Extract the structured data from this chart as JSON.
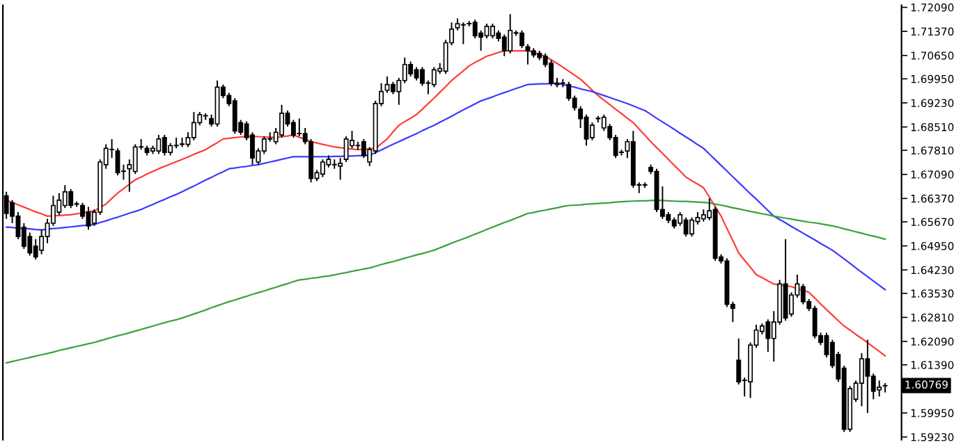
{
  "chart_data": {
    "type": "candlestick",
    "categories": [
      null,
      null,
      null,
      null,
      null,
      null,
      null,
      null,
      null,
      null,
      null,
      null,
      null,
      null,
      null,
      null,
      null,
      null,
      null,
      null,
      null,
      null,
      null,
      null,
      null,
      null,
      null,
      null,
      null,
      null,
      null,
      null,
      null,
      null,
      null,
      null,
      null,
      null,
      null,
      null,
      null,
      null,
      null,
      null,
      null,
      null,
      null,
      null,
      null,
      null,
      null,
      null,
      null,
      null,
      null,
      null,
      null,
      null,
      null,
      null,
      null,
      null,
      null,
      null,
      null,
      null,
      null,
      null,
      null,
      null,
      null,
      null,
      null,
      null,
      null,
      null,
      null,
      null,
      null,
      null,
      null,
      null,
      null,
      null,
      null,
      null,
      null,
      null,
      null,
      null,
      null,
      null,
      null,
      null,
      null,
      null,
      null,
      null,
      null,
      null,
      null,
      null,
      null,
      null,
      null,
      null,
      null,
      null,
      null,
      null,
      null,
      null,
      null,
      null,
      null,
      null,
      null,
      null,
      null,
      null,
      null,
      null,
      null,
      null,
      null,
      null,
      null,
      null,
      null,
      null,
      null,
      null,
      null,
      null,
      null,
      null,
      null,
      null,
      null,
      null,
      null,
      null,
      null,
      null,
      null,
      null,
      null,
      null,
      null,
      null,
      null
    ],
    "ohlc": [
      [
        1.6645,
        1.6657,
        1.6576,
        1.6592
      ],
      [
        1.6624,
        1.6632,
        1.6563,
        1.6584
      ],
      [
        1.6584,
        1.6596,
        1.6515,
        1.6523
      ],
      [
        1.6551,
        1.6563,
        1.6486,
        1.6494
      ],
      [
        1.6523,
        1.6535,
        1.6466,
        1.6474
      ],
      [
        1.6494,
        1.6515,
        1.6454,
        1.6462
      ],
      [
        1.6482,
        1.6543,
        1.647,
        1.6523
      ],
      [
        1.6523,
        1.6576,
        1.6503,
        1.6563
      ],
      [
        1.6563,
        1.6645,
        1.6555,
        1.6616
      ],
      [
        1.6596,
        1.6653,
        1.6588,
        1.6632
      ],
      [
        1.6616,
        1.6677,
        1.6608,
        1.6657
      ],
      [
        1.6657,
        1.6665,
        1.6608,
        1.6616
      ],
      [
        1.662,
        1.6628,
        1.6612,
        1.662
      ],
      [
        1.6616,
        1.6624,
        1.6576,
        1.6584
      ],
      [
        1.6596,
        1.6612,
        1.6543,
        1.6555
      ],
      [
        1.6563,
        1.6604,
        1.6555,
        1.6596
      ],
      [
        1.6596,
        1.6754,
        1.6588,
        1.6746
      ],
      [
        1.6738,
        1.6799,
        1.6726,
        1.6787
      ],
      [
        1.6783,
        1.6815,
        1.6758,
        1.6783
      ],
      [
        1.6779,
        1.6787,
        1.6706,
        1.6714
      ],
      [
        1.6718,
        1.6738,
        1.6693,
        1.6718
      ],
      [
        1.6726,
        1.6754,
        1.6657,
        1.6738
      ],
      [
        1.6718,
        1.6799,
        1.671,
        1.6791
      ],
      [
        1.6791,
        1.6815,
        1.6783,
        1.6791
      ],
      [
        1.6787,
        1.6795,
        1.6766,
        1.6775
      ],
      [
        1.6779,
        1.6795,
        1.677,
        1.6787
      ],
      [
        1.6779,
        1.6827,
        1.677,
        1.6815
      ],
      [
        1.6819,
        1.6827,
        1.6766,
        1.6775
      ],
      [
        1.6775,
        1.6803,
        1.6766,
        1.6795
      ],
      [
        1.6795,
        1.6819,
        1.6787,
        1.6795
      ],
      [
        1.6799,
        1.6819,
        1.6791,
        1.6799
      ],
      [
        1.6799,
        1.6835,
        1.6791,
        1.6819
      ],
      [
        1.6819,
        1.6896,
        1.6811,
        1.6864
      ],
      [
        1.6864,
        1.6896,
        1.6856,
        1.6888
      ],
      [
        1.6884,
        1.6892,
        1.6872,
        1.6884
      ],
      [
        1.6876,
        1.6888,
        1.6852,
        1.686
      ],
      [
        1.686,
        1.699,
        1.6852,
        1.697
      ],
      [
        1.697,
        1.6978,
        1.6937,
        1.6945
      ],
      [
        1.6945,
        1.6953,
        1.6913,
        1.6921
      ],
      [
        1.6929,
        1.6937,
        1.6831,
        1.6839
      ],
      [
        1.6864,
        1.6872,
        1.6827,
        1.6835
      ],
      [
        1.686,
        1.6868,
        1.6811,
        1.6819
      ],
      [
        1.6827,
        1.6835,
        1.6738,
        1.6758
      ],
      [
        1.6746,
        1.6787,
        1.6738,
        1.6779
      ],
      [
        1.6779,
        1.6823,
        1.677,
        1.6815
      ],
      [
        1.6815,
        1.6835,
        1.6807,
        1.6815
      ],
      [
        1.6807,
        1.6848,
        1.6799,
        1.6835
      ],
      [
        1.6827,
        1.6917,
        1.6819,
        1.6892
      ],
      [
        1.6892,
        1.69,
        1.6852,
        1.686
      ],
      [
        1.6864,
        1.6872,
        1.6819,
        1.6827
      ],
      [
        1.6831,
        1.6876,
        1.6823,
        1.6831
      ],
      [
        1.6831,
        1.6848,
        1.6799,
        1.6807
      ],
      [
        1.6807,
        1.6815,
        1.6685,
        1.6697
      ],
      [
        1.6697,
        1.6722,
        1.6689,
        1.6714
      ],
      [
        1.671,
        1.6754,
        1.6701,
        1.6746
      ],
      [
        1.6738,
        1.6766,
        1.673,
        1.6754
      ],
      [
        1.6738,
        1.6754,
        1.6726,
        1.6738
      ],
      [
        1.6734,
        1.6758,
        1.6693,
        1.6742
      ],
      [
        1.6754,
        1.6823,
        1.6746,
        1.6815
      ],
      [
        1.6795,
        1.6839,
        1.6787,
        1.6811
      ],
      [
        1.6795,
        1.6807,
        1.6783,
        1.6795
      ],
      [
        1.6807,
        1.6815,
        1.6758,
        1.6766
      ],
      [
        1.6746,
        1.6791,
        1.6734,
        1.6783
      ],
      [
        1.6779,
        1.6929,
        1.677,
        1.6921
      ],
      [
        1.6921,
        1.6982,
        1.6913,
        1.6957
      ],
      [
        1.6961,
        1.7002,
        1.6953,
        1.6978
      ],
      [
        1.6978,
        1.6986,
        1.6949,
        1.6957
      ],
      [
        1.6957,
        1.6998,
        1.6917,
        1.699
      ],
      [
        1.699,
        1.7059,
        1.6982,
        1.7038
      ],
      [
        1.7038,
        1.7047,
        1.7002,
        1.701
      ],
      [
        1.7022,
        1.703,
        1.699,
        1.6998
      ],
      [
        1.7022,
        1.703,
        1.6974,
        1.6982
      ],
      [
        1.6982,
        1.699,
        1.6949,
        1.6982
      ],
      [
        1.6978,
        1.703,
        1.697,
        1.7022
      ],
      [
        1.7018,
        1.7042,
        1.701,
        1.7026
      ],
      [
        1.7018,
        1.7112,
        1.701,
        1.7103
      ],
      [
        1.7103,
        1.7164,
        1.7095,
        1.7144
      ],
      [
        1.7148,
        1.7176,
        1.714,
        1.716
      ],
      [
        1.7156,
        1.7164,
        1.7099,
        1.7156
      ],
      [
        1.716,
        1.7168,
        1.7152,
        1.716
      ],
      [
        1.7164,
        1.7172,
        1.7116,
        1.7124
      ],
      [
        1.7132,
        1.714,
        1.7079,
        1.712
      ],
      [
        1.7124,
        1.716,
        1.7116,
        1.7152
      ],
      [
        1.7124,
        1.716,
        1.7116,
        1.7152
      ],
      [
        1.7132,
        1.714,
        1.7107,
        1.7116
      ],
      [
        1.712,
        1.7128,
        1.7063,
        1.7079
      ],
      [
        1.7079,
        1.7189,
        1.7071,
        1.714
      ],
      [
        1.7132,
        1.714,
        1.7124,
        1.7132
      ],
      [
        1.7132,
        1.714,
        1.7087,
        1.7095
      ],
      [
        1.7091,
        1.7099,
        1.7038,
        1.7079
      ],
      [
        1.7079,
        1.7087,
        1.7059,
        1.7067
      ],
      [
        1.7071,
        1.7079,
        1.7051,
        1.7059
      ],
      [
        1.7063,
        1.7071,
        1.703,
        1.7038
      ],
      [
        1.7042,
        1.7051,
        1.6974,
        1.6982
      ],
      [
        1.6978,
        1.6998,
        1.697,
        1.6982
      ],
      [
        1.6982,
        1.6994,
        1.697,
        1.6982
      ],
      [
        1.6978,
        1.6986,
        1.6929,
        1.6937
      ],
      [
        1.6937,
        1.6945,
        1.69,
        1.6909
      ],
      [
        1.6904,
        1.6913,
        1.6848,
        1.6876
      ],
      [
        1.688,
        1.6888,
        1.6795,
        1.6815
      ],
      [
        1.6819,
        1.6864,
        1.6811,
        1.6856
      ],
      [
        1.6876,
        1.6884,
        1.6864,
        1.6876
      ],
      [
        1.6848,
        1.6888,
        1.6839,
        1.688
      ],
      [
        1.6852,
        1.686,
        1.6811,
        1.6819
      ],
      [
        1.6819,
        1.6827,
        1.6758,
        1.6766
      ],
      [
        1.6775,
        1.6783,
        1.6766,
        1.6775
      ],
      [
        1.6779,
        1.6815,
        1.6758,
        1.6807
      ],
      [
        1.6807,
        1.6839,
        1.6669,
        1.6677
      ],
      [
        1.6677,
        1.6685,
        1.6653,
        1.6677
      ],
      [
        1.6677,
        1.6685,
        1.6669,
        1.6677
      ],
      [
        1.673,
        1.6738,
        1.671,
        1.6718
      ],
      [
        1.6718,
        1.6726,
        1.6596,
        1.6604
      ],
      [
        1.6604,
        1.6673,
        1.6576,
        1.6584
      ],
      [
        1.6588,
        1.6596,
        1.6563,
        1.6572
      ],
      [
        1.6572,
        1.658,
        1.6547,
        1.6555
      ],
      [
        1.6563,
        1.6596,
        1.6555,
        1.6588
      ],
      [
        1.6572,
        1.658,
        1.6523,
        1.6531
      ],
      [
        1.6531,
        1.658,
        1.6523,
        1.6572
      ],
      [
        1.6568,
        1.6596,
        1.6559,
        1.658
      ],
      [
        1.6576,
        1.6604,
        1.6568,
        1.6588
      ],
      [
        1.658,
        1.6637,
        1.6572,
        1.66
      ],
      [
        1.6604,
        1.6612,
        1.645,
        1.6458
      ],
      [
        1.6462,
        1.647,
        1.6442,
        1.645
      ],
      [
        1.645,
        1.6458,
        1.6312,
        1.632
      ],
      [
        1.632,
        1.6328,
        1.6267,
        1.6308
      ],
      [
        1.6153,
        1.6218,
        1.608,
        1.6088
      ],
      [
        1.6092,
        1.6101,
        1.6044,
        1.6092
      ],
      [
        1.6088,
        1.6206,
        1.604,
        1.6198
      ],
      [
        1.6198,
        1.6259,
        1.619,
        1.6243
      ],
      [
        1.6239,
        1.6263,
        1.623,
        1.6255
      ],
      [
        1.6267,
        1.6275,
        1.6178,
        1.6218
      ],
      [
        1.6218,
        1.63,
        1.6149,
        1.6267
      ],
      [
        1.6267,
        1.6393,
        1.6259,
        1.6381
      ],
      [
        1.6381,
        1.6515,
        1.6271,
        1.6279
      ],
      [
        1.6291,
        1.6356,
        1.6283,
        1.6348
      ],
      [
        1.6348,
        1.6409,
        1.634,
        1.6381
      ],
      [
        1.6373,
        1.6381,
        1.632,
        1.6328
      ],
      [
        1.6328,
        1.6336,
        1.63,
        1.6308
      ],
      [
        1.6308,
        1.6316,
        1.6218,
        1.6226
      ],
      [
        1.6226,
        1.6235,
        1.6198,
        1.6206
      ],
      [
        1.6226,
        1.6235,
        1.6161,
        1.617
      ],
      [
        1.6206,
        1.6214,
        1.6129,
        1.6137
      ],
      [
        1.617,
        1.6178,
        1.6088,
        1.6097
      ],
      [
        1.6129,
        1.6137,
        1.5938,
        1.5946
      ],
      [
        1.5946,
        1.6076,
        1.5938,
        1.6068
      ],
      [
        1.6036,
        1.6092,
        1.6028,
        1.6084
      ],
      [
        1.6084,
        1.6174,
        1.6015,
        1.6157
      ],
      [
        1.6157,
        1.6214,
        1.5995,
        1.6105
      ],
      [
        1.6105,
        1.6113,
        1.6036,
        1.606
      ],
      [
        1.6064,
        1.6092,
        1.6044,
        1.6072
      ],
      [
        1.6076,
        1.6084,
        1.6056,
        1.6077
      ]
    ],
    "series": [
      {
        "type": "line",
        "color": "#ff3b3b",
        "values": [
          1.6632,
          1.6625,
          1.6618,
          1.6611,
          1.6604,
          1.6597,
          1.6591,
          1.6584,
          1.6585,
          1.6586,
          1.6587,
          1.6588,
          1.6591,
          1.6594,
          1.6597,
          1.66,
          1.661,
          1.662,
          1.6637,
          1.6653,
          1.6666,
          1.668,
          1.6693,
          1.6701,
          1.671,
          1.6718,
          1.6726,
          1.6733,
          1.674,
          1.6747,
          1.6754,
          1.6761,
          1.6769,
          1.6776,
          1.6783,
          1.6794,
          1.6804,
          1.6815,
          1.6817,
          1.6819,
          1.6821,
          1.6823,
          1.6822,
          1.6822,
          1.6821,
          1.682,
          1.6819,
          1.6822,
          1.6824,
          1.6827,
          1.682,
          1.6814,
          1.6807,
          1.6803,
          1.6799,
          1.6795,
          1.6791,
          1.6789,
          1.6787,
          1.6785,
          1.6783,
          1.6784,
          1.6786,
          1.6787,
          1.6801,
          1.6815,
          1.6836,
          1.6856,
          1.6867,
          1.6877,
          1.6888,
          1.6904,
          1.6921,
          1.6937,
          1.6955,
          1.6972,
          1.699,
          1.7005,
          1.7019,
          1.7034,
          1.7044,
          1.7053,
          1.7063,
          1.7068,
          1.7074,
          1.7079,
          1.7079,
          1.7079,
          1.7079,
          1.7079,
          1.7074,
          1.7068,
          1.7063,
          1.7052,
          1.7041,
          1.703,
          1.7018,
          1.7006,
          1.6994,
          1.6978,
          1.6961,
          1.6945,
          1.6931,
          1.6918,
          1.6904,
          1.6891,
          1.6877,
          1.6864,
          1.6845,
          1.6826,
          1.6807,
          1.6789,
          1.6772,
          1.6754,
          1.6736,
          1.6719,
          1.6701,
          1.669,
          1.668,
          1.6669,
          1.6641,
          1.6612,
          1.6584,
          1.6547,
          1.6511,
          1.6474,
          1.6452,
          1.6431,
          1.6409,
          1.64,
          1.639,
          1.6381,
          1.6378,
          1.6376,
          1.6373,
          1.6367,
          1.6362,
          1.6356,
          1.6339,
          1.6321,
          1.6304,
          1.6288,
          1.6271,
          1.6255,
          1.6243,
          1.623,
          1.6218,
          1.6205,
          1.6192,
          1.6179,
          1.6166
        ]
      },
      {
        "type": "line",
        "color": "#3b3bff",
        "values": [
          1.6551,
          1.655,
          1.6548,
          1.6547,
          1.6546,
          1.6544,
          1.6543,
          1.6545,
          1.6547,
          1.6548,
          1.655,
          1.6552,
          1.6554,
          1.6556,
          1.6557,
          1.6559,
          1.6565,
          1.657,
          1.6576,
          1.6581,
          1.6587,
          1.6593,
          1.6598,
          1.6604,
          1.6612,
          1.6619,
          1.6627,
          1.6634,
          1.6642,
          1.6649,
          1.6657,
          1.6666,
          1.6674,
          1.6683,
          1.6692,
          1.67,
          1.6709,
          1.6717,
          1.6726,
          1.6728,
          1.6731,
          1.6733,
          1.6736,
          1.6738,
          1.6742,
          1.6746,
          1.675,
          1.6754,
          1.6758,
          1.6762,
          1.6762,
          1.6762,
          1.6762,
          1.6762,
          1.6762,
          1.6762,
          1.6763,
          1.6763,
          1.6764,
          1.6764,
          1.6765,
          1.6765,
          1.6766,
          1.6774,
          1.6782,
          1.6791,
          1.6799,
          1.6807,
          1.6815,
          1.6823,
          1.6831,
          1.684,
          1.6848,
          1.6856,
          1.6865,
          1.6874,
          1.6883,
          1.6893,
          1.6902,
          1.6911,
          1.692,
          1.6929,
          1.6935,
          1.6941,
          1.6948,
          1.6954,
          1.696,
          1.6966,
          1.6972,
          1.6978,
          1.6979,
          1.698,
          1.698,
          1.6981,
          1.6982,
          1.6978,
          1.6974,
          1.697,
          1.6965,
          1.6961,
          1.6957,
          1.6951,
          1.6945,
          1.6939,
          1.6933,
          1.6927,
          1.6921,
          1.6914,
          1.6907,
          1.69,
          1.6889,
          1.6877,
          1.6866,
          1.6855,
          1.6844,
          1.6832,
          1.6821,
          1.681,
          1.6798,
          1.6787,
          1.677,
          1.6753,
          1.6736,
          1.6719,
          1.6702,
          1.6685,
          1.6668,
          1.6651,
          1.6635,
          1.6618,
          1.6601,
          1.6584,
          1.6574,
          1.6564,
          1.6553,
          1.6543,
          1.6533,
          1.6523,
          1.6513,
          1.6502,
          1.6492,
          1.6482,
          1.6469,
          1.6456,
          1.6443,
          1.6429,
          1.6416,
          1.6403,
          1.639,
          1.6377,
          1.6364
        ]
      },
      {
        "type": "line",
        "color": "#3ca03c",
        "values": [
          1.6145,
          1.6149,
          1.6153,
          1.6157,
          1.6161,
          1.6165,
          1.6169,
          1.6173,
          1.6177,
          1.6182,
          1.6186,
          1.619,
          1.6194,
          1.6198,
          1.6202,
          1.6206,
          1.6211,
          1.6216,
          1.6221,
          1.6226,
          1.623,
          1.6235,
          1.624,
          1.6245,
          1.625,
          1.6255,
          1.626,
          1.6265,
          1.627,
          1.6274,
          1.6279,
          1.6285,
          1.6291,
          1.6297,
          1.6303,
          1.631,
          1.6316,
          1.6322,
          1.6328,
          1.6333,
          1.6339,
          1.6344,
          1.635,
          1.6355,
          1.636,
          1.6366,
          1.6371,
          1.6377,
          1.6382,
          1.6388,
          1.6393,
          1.6395,
          1.6398,
          1.64,
          1.6403,
          1.6405,
          1.6408,
          1.6412,
          1.6415,
          1.6419,
          1.6422,
          1.6426,
          1.6429,
          1.6434,
          1.6439,
          1.6444,
          1.6448,
          1.6453,
          1.6458,
          1.6463,
          1.6468,
          1.6472,
          1.6477,
          1.6482,
          1.6489,
          1.6496,
          1.6503,
          1.651,
          1.6516,
          1.6523,
          1.653,
          1.6537,
          1.6544,
          1.6551,
          1.6558,
          1.6565,
          1.6571,
          1.6578,
          1.6585,
          1.6592,
          1.6595,
          1.6599,
          1.6602,
          1.6606,
          1.6609,
          1.6613,
          1.6616,
          1.6617,
          1.6618,
          1.662,
          1.6621,
          1.6622,
          1.6623,
          1.6624,
          1.6626,
          1.6627,
          1.6628,
          1.6629,
          1.663,
          1.663,
          1.6631,
          1.6632,
          1.6631,
          1.663,
          1.6629,
          1.6628,
          1.6628,
          1.6627,
          1.6626,
          1.6625,
          1.6624,
          1.662,
          1.6617,
          1.6613,
          1.6609,
          1.6606,
          1.6602,
          1.6598,
          1.6595,
          1.6591,
          1.6588,
          1.6584,
          1.6581,
          1.6578,
          1.6575,
          1.6572,
          1.6569,
          1.6566,
          1.6564,
          1.6561,
          1.6558,
          1.6555,
          1.6551,
          1.6546,
          1.6542,
          1.6537,
          1.6533,
          1.6528,
          1.6524,
          1.652,
          1.6515
        ]
      }
    ],
    "ylim": [
      1.5915,
      1.7215
    ],
    "yticks": [
      {
        "value": 1.7209,
        "label": "1.72090"
      },
      {
        "value": 1.7137,
        "label": "1.71370"
      },
      {
        "value": 1.7065,
        "label": "1.70650"
      },
      {
        "value": 1.6995,
        "label": "1.69950"
      },
      {
        "value": 1.6923,
        "label": "1.69230"
      },
      {
        "value": 1.6851,
        "label": "1.68510"
      },
      {
        "value": 1.6781,
        "label": "1.67810"
      },
      {
        "value": 1.6709,
        "label": "1.67090"
      },
      {
        "value": 1.6637,
        "label": "1.66370"
      },
      {
        "value": 1.6567,
        "label": "1.65670"
      },
      {
        "value": 1.6495,
        "label": "1.64950"
      },
      {
        "value": 1.6423,
        "label": "1.64230"
      },
      {
        "value": 1.6353,
        "label": "1.63530"
      },
      {
        "value": 1.6281,
        "label": "1.62810"
      },
      {
        "value": 1.6209,
        "label": "1.62090"
      },
      {
        "value": 1.6139,
        "label": "1.61390"
      },
      {
        "value": 1.5995,
        "label": "1.59950"
      },
      {
        "value": 1.5923,
        "label": "1.59230"
      }
    ],
    "annotations": [
      "1.60769"
    ],
    "tick_labels": "y",
    "grid": false,
    "legend": false
  }
}
